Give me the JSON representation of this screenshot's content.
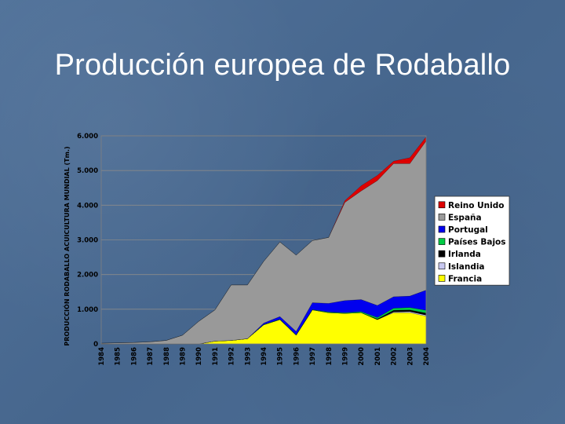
{
  "slide": {
    "title": "Producción europea de Rodaballo"
  },
  "chart_data": {
    "type": "area",
    "stacked": true,
    "title": "",
    "xlabel": "",
    "ylabel": "PRODUCCIÓN RODABALLO ACUICULTURA MUNDIAL (Tm.)",
    "ylim": [
      0,
      6000
    ],
    "yticks": [
      0,
      1000,
      2000,
      3000,
      4000,
      5000,
      6000
    ],
    "ytick_labels": [
      "0",
      "1.000",
      "2.000",
      "3.000",
      "4.000",
      "5.000",
      "6.000"
    ],
    "grid": true,
    "legend_position": "right",
    "x": [
      "1984",
      "1985",
      "1986",
      "1987",
      "1988",
      "1989",
      "1990",
      "1991",
      "1992",
      "1993",
      "1994",
      "1995",
      "1996",
      "1997",
      "1998",
      "1999",
      "2000",
      "2001",
      "2002",
      "2003",
      "2004"
    ],
    "series": [
      {
        "name": "Francia",
        "color": "#ffff00",
        "values": [
          0,
          0,
          0,
          0,
          0,
          0,
          0,
          80,
          100,
          150,
          550,
          700,
          250,
          980,
          900,
          880,
          900,
          700,
          900,
          900,
          800
        ]
      },
      {
        "name": "Islandia",
        "color": "#c8c8f0",
        "values": [
          0,
          0,
          0,
          0,
          0,
          0,
          0,
          0,
          0,
          0,
          0,
          0,
          0,
          0,
          0,
          0,
          0,
          0,
          20,
          30,
          30
        ]
      },
      {
        "name": "Irlanda",
        "color": "#000000",
        "values": [
          0,
          0,
          0,
          0,
          0,
          0,
          0,
          0,
          0,
          0,
          0,
          0,
          0,
          0,
          0,
          0,
          0,
          20,
          50,
          50,
          60
        ]
      },
      {
        "name": "Países Bajos",
        "color": "#00cc44",
        "values": [
          0,
          0,
          0,
          0,
          0,
          0,
          0,
          0,
          0,
          0,
          10,
          10,
          10,
          10,
          20,
          20,
          30,
          40,
          60,
          70,
          80
        ]
      },
      {
        "name": "Portugal",
        "color": "#0000ee",
        "values": [
          0,
          0,
          0,
          0,
          0,
          0,
          0,
          0,
          0,
          0,
          40,
          80,
          100,
          200,
          250,
          350,
          350,
          350,
          330,
          330,
          580
        ]
      },
      {
        "name": "España",
        "color": "#999999",
        "values": [
          20,
          30,
          40,
          60,
          100,
          250,
          650,
          900,
          1600,
          1550,
          1780,
          2150,
          2200,
          1790,
          1900,
          2830,
          3130,
          3600,
          3840,
          3820,
          4300
        ]
      },
      {
        "name": "Reino Unido",
        "color": "#dd0000",
        "values": [
          0,
          0,
          0,
          0,
          0,
          0,
          0,
          0,
          0,
          0,
          0,
          0,
          0,
          0,
          0,
          50,
          150,
          150,
          70,
          170,
          120
        ]
      }
    ]
  }
}
